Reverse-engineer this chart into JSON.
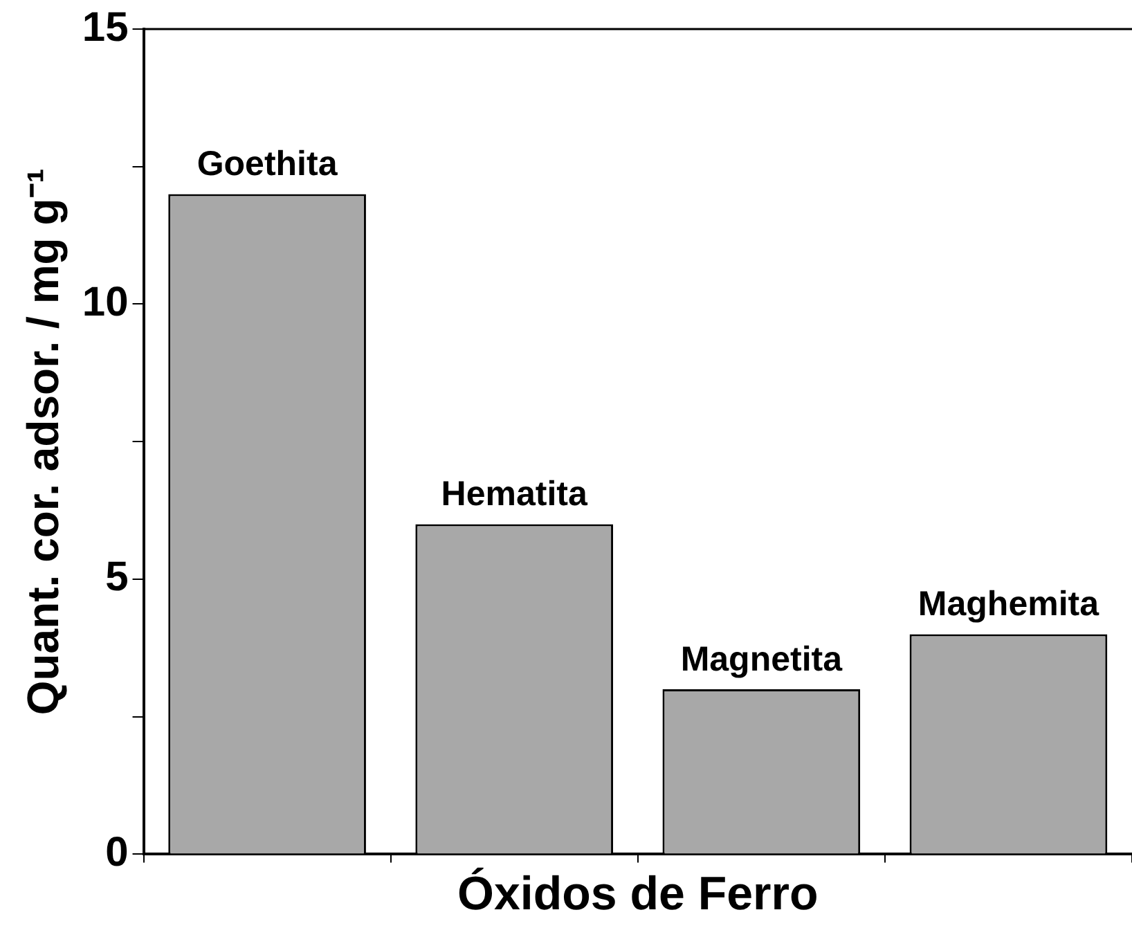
{
  "chart_data": {
    "type": "bar",
    "xlabel": "Óxidos de Ferro",
    "ylabel": "Quant. cor. adsor. / mg g⁻¹",
    "categories": [
      "Goethita",
      "Hematita",
      "Magnetita",
      "Maghemita"
    ],
    "values": [
      12,
      6,
      3,
      4
    ],
    "color": "#a8a8a8",
    "ylim": [
      0,
      15
    ],
    "yticks": [
      0,
      {
        "value": 2.5,
        "label": null
      },
      5,
      {
        "value": 7.5,
        "label": null
      },
      10,
      {
        "value": 12.5,
        "label": null
      },
      15
    ],
    "tick_labels": "y",
    "grid": false,
    "legend": false
  }
}
